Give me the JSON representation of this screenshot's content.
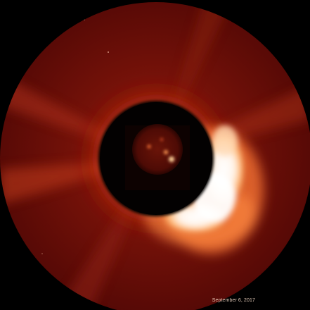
{
  "image": {
    "caption": "September 6, 2017",
    "colors": {
      "background": "#6a0b06",
      "outer_mask": "#000000",
      "occulter": "#000000",
      "cme_core": "#ffffff",
      "cme_glow": "#ff9c4a",
      "sun_disk": "#5e0d06"
    }
  }
}
